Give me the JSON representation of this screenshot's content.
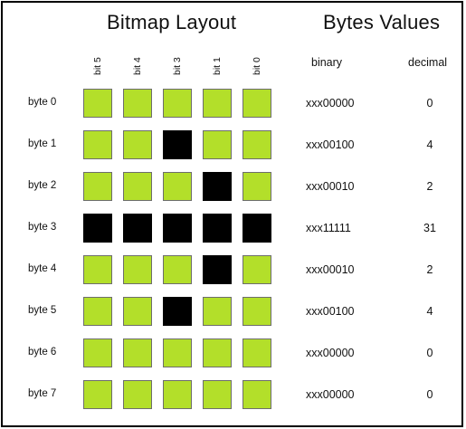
{
  "titles": {
    "layout": "Bitmap Layout",
    "values": "Bytes Values"
  },
  "bit_labels": [
    "bit 5",
    "bit 4",
    "bit 3",
    "bit 1",
    "bit 0"
  ],
  "column_headers": {
    "binary": "binary",
    "decimal": "decimal"
  },
  "colors": {
    "bit_off": "#b3df2a",
    "bit_on": "#000000",
    "cell_border": "#6d6d6d"
  },
  "rows": [
    {
      "label": "byte 0",
      "bits": [
        0,
        0,
        0,
        0,
        0
      ],
      "binary": "xxx00000",
      "decimal": "0"
    },
    {
      "label": "byte 1",
      "bits": [
        0,
        0,
        1,
        0,
        0
      ],
      "binary": "xxx00100",
      "decimal": "4"
    },
    {
      "label": "byte 2",
      "bits": [
        0,
        0,
        0,
        1,
        0
      ],
      "binary": "xxx00010",
      "decimal": "2"
    },
    {
      "label": "byte 3",
      "bits": [
        1,
        1,
        1,
        1,
        1
      ],
      "binary": "xxx11111",
      "decimal": "31"
    },
    {
      "label": "byte 4",
      "bits": [
        0,
        0,
        0,
        1,
        0
      ],
      "binary": "xxx00010",
      "decimal": "2"
    },
    {
      "label": "byte 5",
      "bits": [
        0,
        0,
        1,
        0,
        0
      ],
      "binary": "xxx00100",
      "decimal": "4"
    },
    {
      "label": "byte 6",
      "bits": [
        0,
        0,
        0,
        0,
        0
      ],
      "binary": "xxx00000",
      "decimal": "0"
    },
    {
      "label": "byte 7",
      "bits": [
        0,
        0,
        0,
        0,
        0
      ],
      "binary": "xxx00000",
      "decimal": "0"
    }
  ]
}
